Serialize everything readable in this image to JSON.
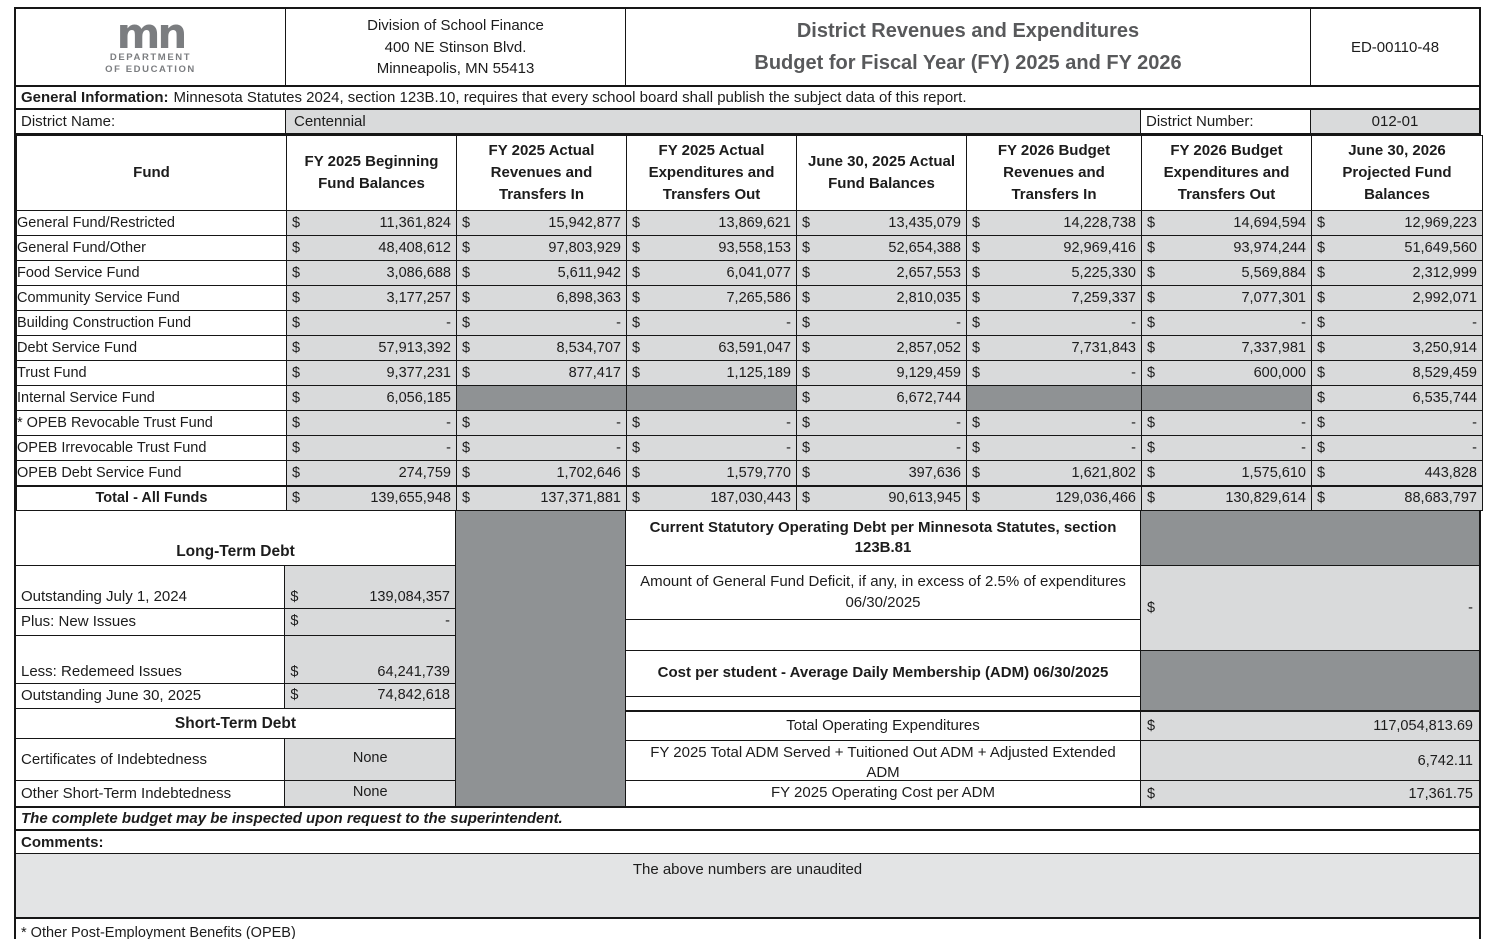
{
  "colors": {
    "light_cell": "#d9dadb",
    "dark_block": "#8f9294",
    "comments_bg": "#e3e4e5",
    "title_gray": "#58595b",
    "logo_gray": "#7b7d80"
  },
  "header": {
    "logo": {
      "mark": "mn",
      "dept_line1": "DEPARTMENT",
      "dept_line2": "OF EDUCATION"
    },
    "address_lines": [
      "Division of School Finance",
      "400 NE Stinson Blvd.",
      "Minneapolis, MN 55413"
    ],
    "title_line1": "District Revenues and Expenditures",
    "title_line2": "Budget for Fiscal Year (FY) 2025 and FY 2026",
    "form_number": "ED-00110-48"
  },
  "general_information": {
    "label": "General Information:",
    "text": "Minnesota Statutes 2024, section 123B.10, requires that every school board shall publish the subject data of this report."
  },
  "district": {
    "name_label": "District Name:",
    "name": "Centennial",
    "number_label": "District Number:",
    "number": "012-01"
  },
  "fund_table": {
    "currency_symbol": "$",
    "columns": [
      "Fund",
      "FY 2025 Beginning Fund Balances",
      "FY 2025 Actual Revenues and Transfers In",
      "FY 2025 Actual Expenditures and Transfers Out",
      "June 30, 2025 Actual Fund Balances",
      "FY 2026 Budget Revenues and Transfers In",
      "FY 2026 Budget Expenditures and Transfers Out",
      "June 30, 2026 Projected Fund Balances"
    ],
    "rows": [
      {
        "fund": "General Fund/Restricted",
        "values": [
          "11,361,824",
          "15,942,877",
          "13,869,621",
          "13,435,079",
          "14,228,738",
          "14,694,594",
          "12,969,223"
        ]
      },
      {
        "fund": "General Fund/Other",
        "values": [
          "48,408,612",
          "97,803,929",
          "93,558,153",
          "52,654,388",
          "92,969,416",
          "93,974,244",
          "51,649,560"
        ]
      },
      {
        "fund": "Food Service Fund",
        "values": [
          "3,086,688",
          "5,611,942",
          "6,041,077",
          "2,657,553",
          "5,225,330",
          "5,569,884",
          "2,312,999"
        ]
      },
      {
        "fund": "Community Service Fund",
        "values": [
          "3,177,257",
          "6,898,363",
          "7,265,586",
          "2,810,035",
          "7,259,337",
          "7,077,301",
          "2,992,071"
        ]
      },
      {
        "fund": "Building Construction Fund",
        "values": [
          "-",
          "-",
          "-",
          "-",
          "-",
          "-",
          "-"
        ]
      },
      {
        "fund": "Debt Service Fund",
        "values": [
          "57,913,392",
          "8,534,707",
          "63,591,047",
          "2,857,052",
          "7,731,843",
          "7,337,981",
          "3,250,914"
        ]
      },
      {
        "fund": "Trust Fund",
        "values": [
          "9,377,231",
          "877,417",
          "1,125,189",
          "9,129,459",
          "-",
          "600,000",
          "8,529,459"
        ]
      },
      {
        "fund": "Internal Service Fund",
        "values": [
          "6,056,185",
          null,
          null,
          "6,672,744",
          null,
          null,
          "6,535,744"
        ]
      },
      {
        "fund": "* OPEB Revocable Trust Fund",
        "values": [
          "-",
          "-",
          "-",
          "-",
          "-",
          "-",
          "-"
        ]
      },
      {
        "fund": "OPEB Irrevocable Trust Fund",
        "values": [
          "-",
          "-",
          "-",
          "-",
          "-",
          "-",
          "-"
        ]
      },
      {
        "fund": "OPEB Debt Service Fund",
        "values": [
          "274,759",
          "1,702,646",
          "1,579,770",
          "397,636",
          "1,621,802",
          "1,575,610",
          "443,828"
        ]
      },
      {
        "fund": "Total - All Funds",
        "is_total": true,
        "values": [
          "139,655,948",
          "137,371,881",
          "187,030,443",
          "90,613,945",
          "129,036,466",
          "130,829,614",
          "88,683,797"
        ]
      }
    ]
  },
  "long_term_debt": {
    "title": "Long-Term Debt",
    "rows": [
      {
        "label": "Outstanding July 1, 2024",
        "dollar": "$",
        "value": "139,084,357"
      },
      {
        "label": "Plus: New Issues",
        "dollar": "$",
        "value": "-"
      },
      {
        "label": "Less: Redemeed Issues",
        "dollar": "$",
        "value": "64,241,739"
      },
      {
        "label": "Outstanding June 30, 2025",
        "dollar": "$",
        "value": "74,842,618"
      }
    ]
  },
  "short_term_debt": {
    "title": "Short-Term Debt",
    "rows": [
      {
        "label": "Certificates of Indebtedness",
        "value": "None"
      },
      {
        "label": "Other Short-Term Indebtedness",
        "value": "None"
      }
    ]
  },
  "statutory_section": {
    "header": "Current Statutory Operating Debt per Minnesota Statutes, section 123B.81",
    "deficit_label": "Amount of General Fund Deficit, if any, in excess of 2.5% of expenditures 06/30/2025",
    "deficit_dollar": "$",
    "deficit_value": "-"
  },
  "cost_section": {
    "header": "Cost per student - Average Daily Membership (ADM) 06/30/2025",
    "rows": [
      {
        "label": "Total Operating Expenditures",
        "dollar": "$",
        "value": "117,054,813.69"
      },
      {
        "label": "FY 2025 Total ADM Served + Tuitioned Out ADM + Adjusted Extended ADM",
        "dollar": "",
        "value": "6,742.11"
      },
      {
        "label": "FY 2025 Operating Cost per ADM",
        "dollar": "$",
        "value": "17,361.75"
      }
    ]
  },
  "footer": {
    "inspect_note": "The complete budget may be inspected upon request to the superintendent.",
    "comments_label": "Comments:",
    "comments_text": "The above numbers are unaudited",
    "opeb_note": "* Other Post-Employment Benefits (OPEB)"
  }
}
